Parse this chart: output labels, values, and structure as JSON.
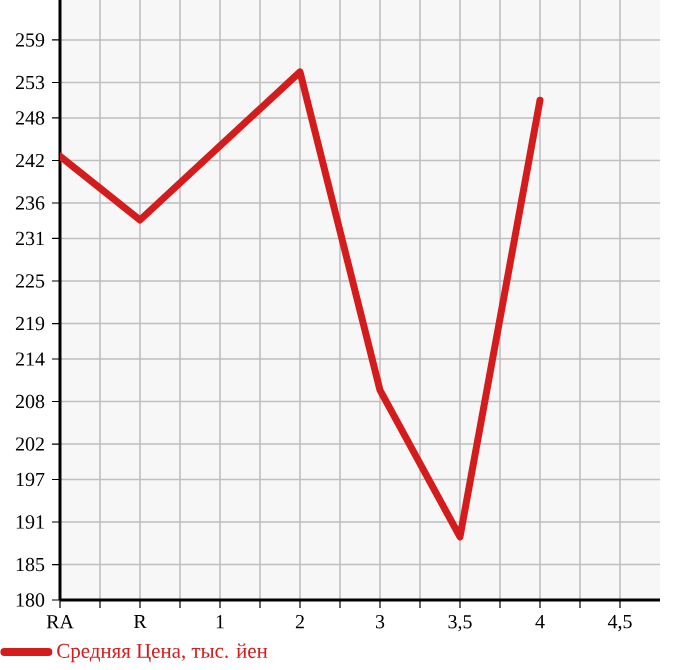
{
  "chart_data": {
    "type": "line",
    "categories": [
      "RA",
      "R",
      "1",
      "2",
      "3",
      "3,5",
      "4",
      "4,5"
    ],
    "series": [
      {
        "name": "Средняя Цена, тыс. йен",
        "color": "#d41c1c",
        "values": [
          242.6,
          233.6,
          null,
          254.5,
          209.6,
          188.9,
          250.5,
          null
        ]
      }
    ],
    "ylim": [
      180,
      264.64
    ],
    "yticks": [
      180,
      185,
      191,
      197,
      202,
      208,
      214,
      219,
      225,
      231,
      236,
      242,
      248,
      253,
      259
    ],
    "grid": true,
    "legend": "bottom",
    "marker": "none",
    "line_style": "solid"
  }
}
